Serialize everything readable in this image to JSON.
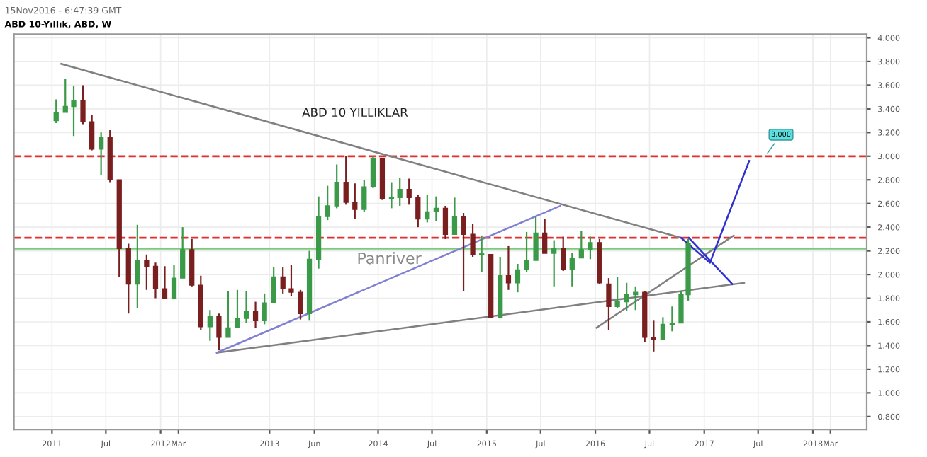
{
  "chart_data": {
    "type": "candlestick",
    "title": "ABD 10-Yıllık, ABD, W",
    "subtitle": "15Nov2016 - 6:47:39 GMT",
    "annotations": [
      "ABD 10 YILLIKLAR",
      "Panriver",
      {
        "text": "3.000",
        "x": "2017-07-25",
        "y": 3.0
      }
    ],
    "x": [
      "2011-01-15",
      "2011-02-15",
      "2011-03-15",
      "2011-04-15",
      "2011-05-15",
      "2011-06-15",
      "2011-07-15",
      "2011-08-15",
      "2011-09-15",
      "2011-10-15",
      "2011-11-15",
      "2011-12-15",
      "2012-01-15",
      "2012-02-15",
      "2012-03-15",
      "2012-04-15",
      "2012-05-15",
      "2012-06-15",
      "2012-07-15",
      "2012-08-15",
      "2012-09-15",
      "2012-10-15",
      "2012-11-15",
      "2012-12-15",
      "2013-01-15",
      "2013-02-15",
      "2013-03-15",
      "2013-04-15",
      "2013-05-15",
      "2013-06-15",
      "2013-07-15",
      "2013-08-15",
      "2013-09-15",
      "2013-10-15",
      "2013-11-15",
      "2013-12-15",
      "2014-01-15",
      "2014-02-15",
      "2014-03-15",
      "2014-04-15",
      "2014-05-15",
      "2014-06-15",
      "2014-07-15",
      "2014-08-15",
      "2014-09-15",
      "2014-10-15",
      "2014-11-15",
      "2014-12-15",
      "2015-01-15",
      "2015-02-15",
      "2015-03-15",
      "2015-04-15",
      "2015-05-15",
      "2015-06-15",
      "2015-07-15",
      "2015-08-15",
      "2015-09-15",
      "2015-10-15",
      "2015-11-15",
      "2015-12-15",
      "2016-01-15",
      "2016-02-15",
      "2016-03-15",
      "2016-04-15",
      "2016-05-15",
      "2016-06-15",
      "2016-07-15",
      "2016-08-15",
      "2016-09-15",
      "2016-10-15",
      "2016-11-08"
    ],
    "ohlc": [
      [
        3.3,
        3.48,
        3.28,
        3.37
      ],
      [
        3.37,
        3.65,
        3.37,
        3.42
      ],
      [
        3.42,
        3.59,
        3.17,
        3.47
      ],
      [
        3.47,
        3.6,
        3.27,
        3.29
      ],
      [
        3.29,
        3.35,
        3.05,
        3.06
      ],
      [
        3.06,
        3.2,
        2.84,
        3.16
      ],
      [
        3.16,
        3.22,
        2.78,
        2.8
      ],
      [
        2.8,
        2.8,
        1.98,
        2.22
      ],
      [
        2.22,
        2.26,
        1.67,
        1.92
      ],
      [
        1.92,
        2.42,
        1.72,
        2.12
      ],
      [
        2.12,
        2.17,
        1.87,
        2.07
      ],
      [
        2.07,
        2.1,
        1.8,
        1.88
      ],
      [
        1.88,
        2.07,
        1.8,
        1.8
      ],
      [
        1.8,
        2.08,
        1.79,
        1.97
      ],
      [
        1.97,
        2.4,
        1.97,
        2.21
      ],
      [
        2.21,
        2.3,
        1.9,
        1.91
      ],
      [
        1.91,
        1.99,
        1.53,
        1.56
      ],
      [
        1.56,
        1.7,
        1.44,
        1.65
      ],
      [
        1.65,
        1.67,
        1.36,
        1.47
      ],
      [
        1.47,
        1.86,
        1.47,
        1.55
      ],
      [
        1.55,
        1.87,
        1.55,
        1.63
      ],
      [
        1.63,
        1.86,
        1.59,
        1.69
      ],
      [
        1.69,
        1.77,
        1.55,
        1.61
      ],
      [
        1.61,
        1.84,
        1.58,
        1.76
      ],
      [
        1.76,
        2.06,
        1.76,
        1.98
      ],
      [
        1.98,
        2.06,
        1.84,
        1.88
      ],
      [
        1.88,
        2.08,
        1.82,
        1.85
      ],
      [
        1.85,
        1.87,
        1.62,
        1.67
      ],
      [
        1.67,
        2.2,
        1.61,
        2.13
      ],
      [
        2.13,
        2.66,
        2.05,
        2.49
      ],
      [
        2.49,
        2.75,
        2.46,
        2.58
      ],
      [
        2.58,
        2.93,
        2.56,
        2.78
      ],
      [
        2.78,
        3.0,
        2.59,
        2.61
      ],
      [
        2.61,
        2.77,
        2.47,
        2.55
      ],
      [
        2.55,
        2.8,
        2.53,
        2.74
      ],
      [
        2.74,
        3.0,
        2.73,
        2.98
      ],
      [
        2.98,
        2.98,
        2.63,
        2.64
      ],
      [
        2.64,
        2.78,
        2.56,
        2.65
      ],
      [
        2.65,
        2.82,
        2.58,
        2.72
      ],
      [
        2.72,
        2.81,
        2.59,
        2.65
      ],
      [
        2.65,
        2.67,
        2.4,
        2.47
      ],
      [
        2.47,
        2.67,
        2.44,
        2.53
      ],
      [
        2.53,
        2.66,
        2.45,
        2.56
      ],
      [
        2.56,
        2.58,
        2.3,
        2.34
      ],
      [
        2.34,
        2.65,
        2.34,
        2.49
      ],
      [
        2.49,
        2.52,
        1.86,
        2.34
      ],
      [
        2.34,
        2.43,
        2.15,
        2.17
      ],
      [
        2.17,
        2.33,
        2.02,
        2.17
      ],
      [
        2.17,
        2.17,
        1.64,
        1.64
      ],
      [
        1.64,
        2.15,
        1.64,
        1.99
      ],
      [
        1.99,
        2.24,
        1.87,
        1.93
      ],
      [
        1.93,
        2.09,
        1.85,
        2.04
      ],
      [
        2.04,
        2.36,
        2.02,
        2.12
      ],
      [
        2.12,
        2.49,
        2.12,
        2.35
      ],
      [
        2.35,
        2.47,
        2.18,
        2.18
      ],
      [
        2.18,
        2.29,
        1.9,
        2.22
      ],
      [
        2.22,
        2.32,
        2.03,
        2.04
      ],
      [
        2.04,
        2.18,
        1.9,
        2.14
      ],
      [
        2.14,
        2.37,
        2.14,
        2.21
      ],
      [
        2.21,
        2.32,
        2.13,
        2.27
      ],
      [
        2.27,
        2.3,
        1.92,
        1.93
      ],
      [
        1.92,
        1.97,
        1.53,
        1.73
      ],
      [
        1.73,
        1.98,
        1.72,
        1.77
      ],
      [
        1.77,
        1.93,
        1.69,
        1.83
      ],
      [
        1.83,
        1.9,
        1.7,
        1.85
      ],
      [
        1.85,
        1.86,
        1.43,
        1.47
      ],
      [
        1.47,
        1.61,
        1.35,
        1.45
      ],
      [
        1.45,
        1.64,
        1.45,
        1.58
      ],
      [
        1.58,
        1.73,
        1.52,
        1.59
      ],
      [
        1.59,
        1.86,
        1.59,
        1.83
      ],
      [
        1.83,
        2.3,
        1.78,
        2.26
      ]
    ],
    "series": [
      {
        "type": "line",
        "color": "#808080",
        "x": [
          "2011-02-01",
          "2016-10-15"
        ],
        "values": [
          3.78,
          2.31
        ]
      },
      {
        "type": "line",
        "color": "#808080",
        "x": [
          "2012-07-08",
          "2017-05-15"
        ],
        "values": [
          1.34,
          1.93
        ]
      },
      {
        "type": "line",
        "color": "#8080d0",
        "x": [
          "2012-07-08",
          "2015-09-05"
        ],
        "values": [
          1.34,
          2.58
        ]
      },
      {
        "type": "line",
        "color": "#808080",
        "x": [
          "2016-01-05",
          "2017-04-10"
        ],
        "values": [
          1.55,
          2.33
        ]
      },
      {
        "type": "line",
        "color": "#3030d0",
        "x": [
          "2016-10-15",
          "2017-01-20",
          "2017-06-01"
        ],
        "values": [
          2.31,
          2.1,
          2.96
        ]
      },
      {
        "type": "line",
        "color": "#3030d0",
        "x": [
          "2016-11-10",
          "2017-04-05"
        ],
        "values": [
          2.31,
          1.92
        ]
      }
    ],
    "ref_lines": [
      {
        "axis": "y",
        "value": 3.0,
        "color": "#e03030",
        "line_style": "dashed"
      },
      {
        "axis": "y",
        "value": 2.31,
        "color": "#e03030",
        "line_style": "dashed"
      },
      {
        "axis": "y",
        "value": 2.22,
        "color": "#7cc87c",
        "line_style": "solid"
      }
    ],
    "xlim": [
      "2010-08-26",
      "2018-07-01"
    ],
    "xticks": [
      {
        "value": "2011-01-01",
        "label": "2011"
      },
      {
        "value": "2011-07-01",
        "label": "Jul"
      },
      {
        "value": "2012-01-01",
        "label": "2012"
      },
      {
        "value": "2012-03-01",
        "label": "Mar"
      },
      {
        "value": "2013-01-01",
        "label": "2013"
      },
      {
        "value": "2013-06-01",
        "label": "Jun"
      },
      {
        "value": "2014-01-01",
        "label": "2014"
      },
      {
        "value": "2014-07-01",
        "label": "Jul"
      },
      {
        "value": "2015-01-01",
        "label": "2015"
      },
      {
        "value": "2015-07-01",
        "label": "Jul"
      },
      {
        "value": "2016-01-01",
        "label": "2016"
      },
      {
        "value": "2016-07-01",
        "label": "Jul"
      },
      {
        "value": "2017-01-01",
        "label": "2017"
      },
      {
        "value": "2017-07-01",
        "label": "Jul"
      },
      {
        "value": "2018-01-01",
        "label": "2018"
      },
      {
        "value": "2018-03-01",
        "label": "Mar"
      }
    ],
    "ylim": [
      0.69,
      4.03
    ],
    "yticks": [
      {
        "value": 0.8,
        "label": "0.800"
      },
      {
        "value": 1.0,
        "label": "1.000"
      },
      {
        "value": 1.2,
        "label": "1.200"
      },
      {
        "value": 1.4,
        "label": "1.400"
      },
      {
        "value": 1.6,
        "label": "1.600"
      },
      {
        "value": 1.8,
        "label": "1.800"
      },
      {
        "value": 2.0,
        "label": "2.000"
      },
      {
        "value": 2.2,
        "label": "2.200"
      },
      {
        "value": 2.4,
        "label": "2.400"
      },
      {
        "value": 2.6,
        "label": "2.600"
      },
      {
        "value": 2.8,
        "label": "2.800"
      },
      {
        "value": 3.0,
        "label": "3.000"
      },
      {
        "value": 3.2,
        "label": "3.200"
      },
      {
        "value": 3.4,
        "label": "3.400"
      },
      {
        "value": 3.6,
        "label": "3.600"
      },
      {
        "value": 3.8,
        "label": "3.800"
      },
      {
        "value": 4.0,
        "label": "4.000"
      }
    ],
    "grid": true
  }
}
